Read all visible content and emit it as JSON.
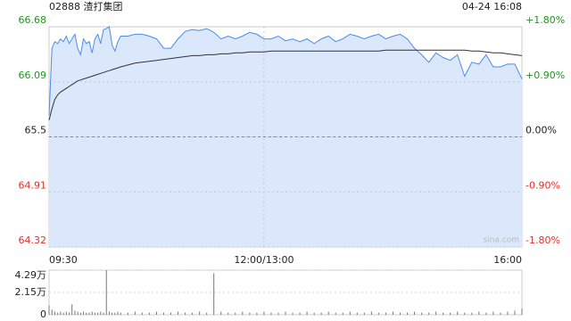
{
  "header": {
    "code": "02888 渣打集团",
    "time": "04-24 16:08"
  },
  "chart_data": [
    {
      "type": "line",
      "x": [
        0,
        2,
        4,
        6,
        8,
        10,
        12,
        14,
        16,
        18,
        20,
        22,
        24,
        26,
        28,
        30,
        32,
        34,
        36,
        38,
        40,
        42,
        44,
        46,
        48,
        50,
        55,
        60,
        65,
        70,
        75,
        80,
        85,
        90,
        95,
        100,
        105,
        110,
        115,
        120,
        125,
        130,
        135,
        140,
        145,
        150,
        155,
        160,
        165,
        170,
        175,
        180,
        185,
        190,
        195,
        200,
        205,
        210,
        215,
        220,
        225,
        230,
        235,
        240,
        245,
        250,
        255,
        260,
        265,
        270,
        275,
        280,
        285,
        290,
        295,
        300,
        305,
        310,
        315,
        320,
        325,
        330
      ],
      "series": [
        {
          "color": "#4a8cf0",
          "values": [
            65.73,
            66.45,
            66.52,
            66.5,
            66.55,
            66.52,
            66.58,
            66.5,
            66.55,
            66.6,
            66.45,
            66.38,
            66.55,
            66.5,
            66.52,
            66.4,
            66.55,
            66.6,
            66.5,
            66.65,
            66.66,
            66.68,
            66.48,
            66.42,
            66.52,
            66.58,
            66.58,
            66.6,
            66.6,
            66.58,
            66.55,
            66.45,
            66.45,
            66.55,
            66.63,
            66.65,
            66.64,
            66.66,
            66.62,
            66.55,
            66.58,
            66.55,
            66.58,
            66.62,
            66.6,
            66.55,
            66.55,
            66.58,
            66.53,
            66.55,
            66.52,
            66.55,
            66.5,
            66.55,
            66.58,
            66.52,
            66.55,
            66.6,
            66.58,
            66.55,
            66.58,
            66.6,
            66.55,
            66.58,
            66.6,
            66.55,
            66.45,
            66.38,
            66.3,
            66.4,
            66.35,
            66.32,
            66.38,
            66.15,
            66.3,
            66.28,
            66.38,
            66.25,
            66.25,
            66.28,
            66.28,
            66.12
          ]
        },
        {
          "color": "#333333",
          "values": [
            65.68,
            65.8,
            65.9,
            65.95,
            65.98,
            66.0,
            66.02,
            66.04,
            66.06,
            66.08,
            66.1,
            66.11,
            66.12,
            66.13,
            66.14,
            66.15,
            66.16,
            66.17,
            66.18,
            66.19,
            66.2,
            66.21,
            66.22,
            66.23,
            66.24,
            66.25,
            66.27,
            66.29,
            66.3,
            66.31,
            66.32,
            66.33,
            66.34,
            66.35,
            66.36,
            66.37,
            66.37,
            66.38,
            66.38,
            66.39,
            66.39,
            66.4,
            66.4,
            66.41,
            66.41,
            66.41,
            66.42,
            66.42,
            66.42,
            66.42,
            66.42,
            66.42,
            66.42,
            66.42,
            66.42,
            66.42,
            66.42,
            66.42,
            66.42,
            66.42,
            66.42,
            66.42,
            66.43,
            66.43,
            66.43,
            66.43,
            66.43,
            66.43,
            66.43,
            66.43,
            66.43,
            66.43,
            66.43,
            66.43,
            66.42,
            66.42,
            66.41,
            66.4,
            66.4,
            66.39,
            66.38,
            66.37
          ]
        }
      ],
      "xlim": [
        0,
        330
      ],
      "xticks": [
        {
          "value": 0,
          "label": "09:30"
        },
        {
          "value": 150,
          "label": "12:00/13:00"
        },
        {
          "value": 330,
          "label": "16:00"
        }
      ],
      "ylim": [
        64.32,
        66.68
      ],
      "yticks": [
        66.68,
        66.09,
        65.5,
        64.91,
        64.32
      ],
      "y2lim": [
        -1.8,
        1.8
      ],
      "y2ticks": [
        {
          "value": 1.8,
          "label": "+1.80%"
        },
        {
          "value": 0.9,
          "label": "+0.90%"
        },
        {
          "value": 0,
          "label": "0.00%"
        },
        {
          "value": -0.9,
          "label": "-0.90%"
        },
        {
          "value": -1.8,
          "label": "-1.80%"
        }
      ],
      "baseline": 65.5,
      "up_color": "#1a9a1a",
      "down_color": "#e0302a",
      "flat_color": "#222222",
      "fill": "#dbe7fb",
      "watermark": "sina.com"
    },
    {
      "type": "bar",
      "x": [
        0,
        2,
        4,
        6,
        8,
        10,
        12,
        14,
        16,
        18,
        20,
        22,
        24,
        26,
        28,
        30,
        32,
        34,
        36,
        38,
        40,
        42,
        44,
        46,
        48,
        50,
        55,
        60,
        65,
        70,
        75,
        80,
        85,
        90,
        95,
        100,
        105,
        110,
        115,
        120,
        125,
        130,
        135,
        140,
        145,
        150,
        155,
        160,
        165,
        170,
        175,
        180,
        185,
        190,
        195,
        200,
        205,
        210,
        215,
        220,
        225,
        230,
        235,
        240,
        245,
        250,
        255,
        260,
        265,
        270,
        275,
        280,
        285,
        290,
        295,
        300,
        305,
        310,
        315,
        320,
        325,
        330
      ],
      "values": [
        0.9,
        0.5,
        0.3,
        0.2,
        0.3,
        0.2,
        0.3,
        0.2,
        1.0,
        0.4,
        0.3,
        0.2,
        0.3,
        0.2,
        0.2,
        0.3,
        0.2,
        0.2,
        0.3,
        0.2,
        4.29,
        0.3,
        0.2,
        0.2,
        0.3,
        0.2,
        0.2,
        0.3,
        0.2,
        0.2,
        0.3,
        0.2,
        0.2,
        0.3,
        0.2,
        0.2,
        0.3,
        0.2,
        4.0,
        0.3,
        0.2,
        0.2,
        0.3,
        0.2,
        0.2,
        0.3,
        0.2,
        0.2,
        0.3,
        0.2,
        0.2,
        0.3,
        0.2,
        0.2,
        0.3,
        0.2,
        0.2,
        0.3,
        0.2,
        0.2,
        0.3,
        0.2,
        0.2,
        0.3,
        0.2,
        0.2,
        0.3,
        0.2,
        0.2,
        0.3,
        0.2,
        0.2,
        0.3,
        0.2,
        0.2,
        0.3,
        0.2,
        0.3,
        0.2,
        0.3,
        0.4,
        0.6
      ],
      "color": "#777777",
      "xlim": [
        0,
        330
      ],
      "ylim": [
        0,
        4.29
      ],
      "yticks": [
        {
          "value": 4.29,
          "label": "4.29万"
        },
        {
          "value": 2.15,
          "label": "2.15万"
        },
        0
      ]
    }
  ]
}
